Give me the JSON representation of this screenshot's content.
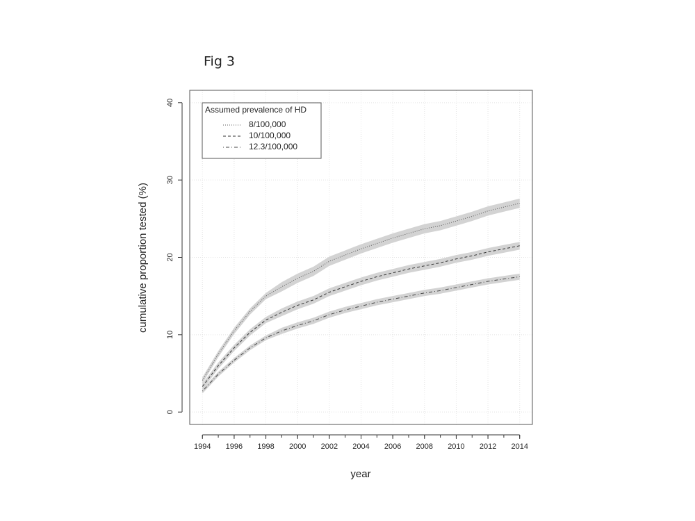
{
  "chart_data": {
    "type": "line",
    "figure_label": "Fig 3",
    "x_label": "year",
    "y_label": "cumulative proportion tested (%)",
    "legend_title": "Assumed prevalence of HD",
    "legend": "top-left",
    "grid": true,
    "x": [
      1994,
      1995,
      1996,
      1997,
      1998,
      1999,
      2000,
      2001,
      2002,
      2003,
      2004,
      2005,
      2006,
      2007,
      2008,
      2009,
      2010,
      2011,
      2012,
      2013,
      2014
    ],
    "xlim": [
      1993.2,
      2014.8
    ],
    "xticks": [
      1994,
      1996,
      1998,
      2000,
      2002,
      2004,
      2006,
      2008,
      2010,
      2012,
      2014
    ],
    "ylim": [
      -1.6,
      41.6
    ],
    "yticks": [
      0,
      10,
      20,
      30,
      40
    ],
    "band_color": "#d3d3d3",
    "series": [
      {
        "name": "8/100,000",
        "color": "#555555",
        "dash": "dotted",
        "values": [
          4.1,
          7.5,
          10.5,
          13.0,
          15.0,
          16.2,
          17.3,
          18.2,
          19.5,
          20.3,
          21.1,
          21.8,
          22.5,
          23.1,
          23.7,
          24.1,
          24.7,
          25.3,
          26.0,
          26.5,
          27.0
        ],
        "lower": [
          3.7,
          7.1,
          10.1,
          12.6,
          14.6,
          15.6,
          16.7,
          17.6,
          18.9,
          19.7,
          20.5,
          21.2,
          21.9,
          22.5,
          23.1,
          23.5,
          24.1,
          24.7,
          25.4,
          25.9,
          26.4
        ],
        "upper": [
          4.5,
          7.9,
          10.9,
          13.4,
          15.4,
          16.8,
          17.9,
          18.8,
          20.1,
          20.9,
          21.7,
          22.4,
          23.1,
          23.7,
          24.3,
          24.7,
          25.3,
          25.9,
          26.6,
          27.1,
          27.6
        ]
      },
      {
        "name": "10/100,000",
        "color": "#333333",
        "dash": "dashed",
        "values": [
          3.3,
          6.0,
          8.3,
          10.3,
          11.9,
          12.9,
          13.8,
          14.5,
          15.5,
          16.2,
          16.9,
          17.5,
          18.0,
          18.5,
          18.9,
          19.3,
          19.8,
          20.2,
          20.7,
          21.1,
          21.5
        ],
        "lower": [
          2.9,
          5.6,
          7.9,
          9.9,
          11.5,
          12.4,
          13.3,
          14.0,
          15.0,
          15.7,
          16.4,
          17.0,
          17.5,
          18.0,
          18.4,
          18.8,
          19.3,
          19.7,
          20.2,
          20.6,
          21.0
        ],
        "upper": [
          3.7,
          6.4,
          8.7,
          10.7,
          12.3,
          13.4,
          14.3,
          15.0,
          16.0,
          16.7,
          17.4,
          18.0,
          18.5,
          19.0,
          19.4,
          19.8,
          20.3,
          20.7,
          21.2,
          21.6,
          22.0
        ]
      },
      {
        "name": "12.3/100,000",
        "color": "#444444",
        "dash": "dotdash",
        "values": [
          2.7,
          4.9,
          6.7,
          8.3,
          9.6,
          10.5,
          11.2,
          11.8,
          12.6,
          13.2,
          13.7,
          14.2,
          14.6,
          15.0,
          15.4,
          15.7,
          16.1,
          16.5,
          16.9,
          17.2,
          17.5
        ],
        "lower": [
          2.4,
          4.6,
          6.4,
          8.0,
          9.3,
          10.1,
          10.8,
          11.4,
          12.2,
          12.8,
          13.3,
          13.8,
          14.2,
          14.6,
          15.0,
          15.3,
          15.7,
          16.1,
          16.5,
          16.8,
          17.1
        ],
        "upper": [
          3.0,
          5.2,
          7.0,
          8.6,
          9.9,
          10.9,
          11.6,
          12.2,
          13.0,
          13.6,
          14.1,
          14.6,
          15.0,
          15.4,
          15.8,
          16.1,
          16.5,
          16.9,
          17.3,
          17.6,
          17.9
        ]
      }
    ]
  }
}
